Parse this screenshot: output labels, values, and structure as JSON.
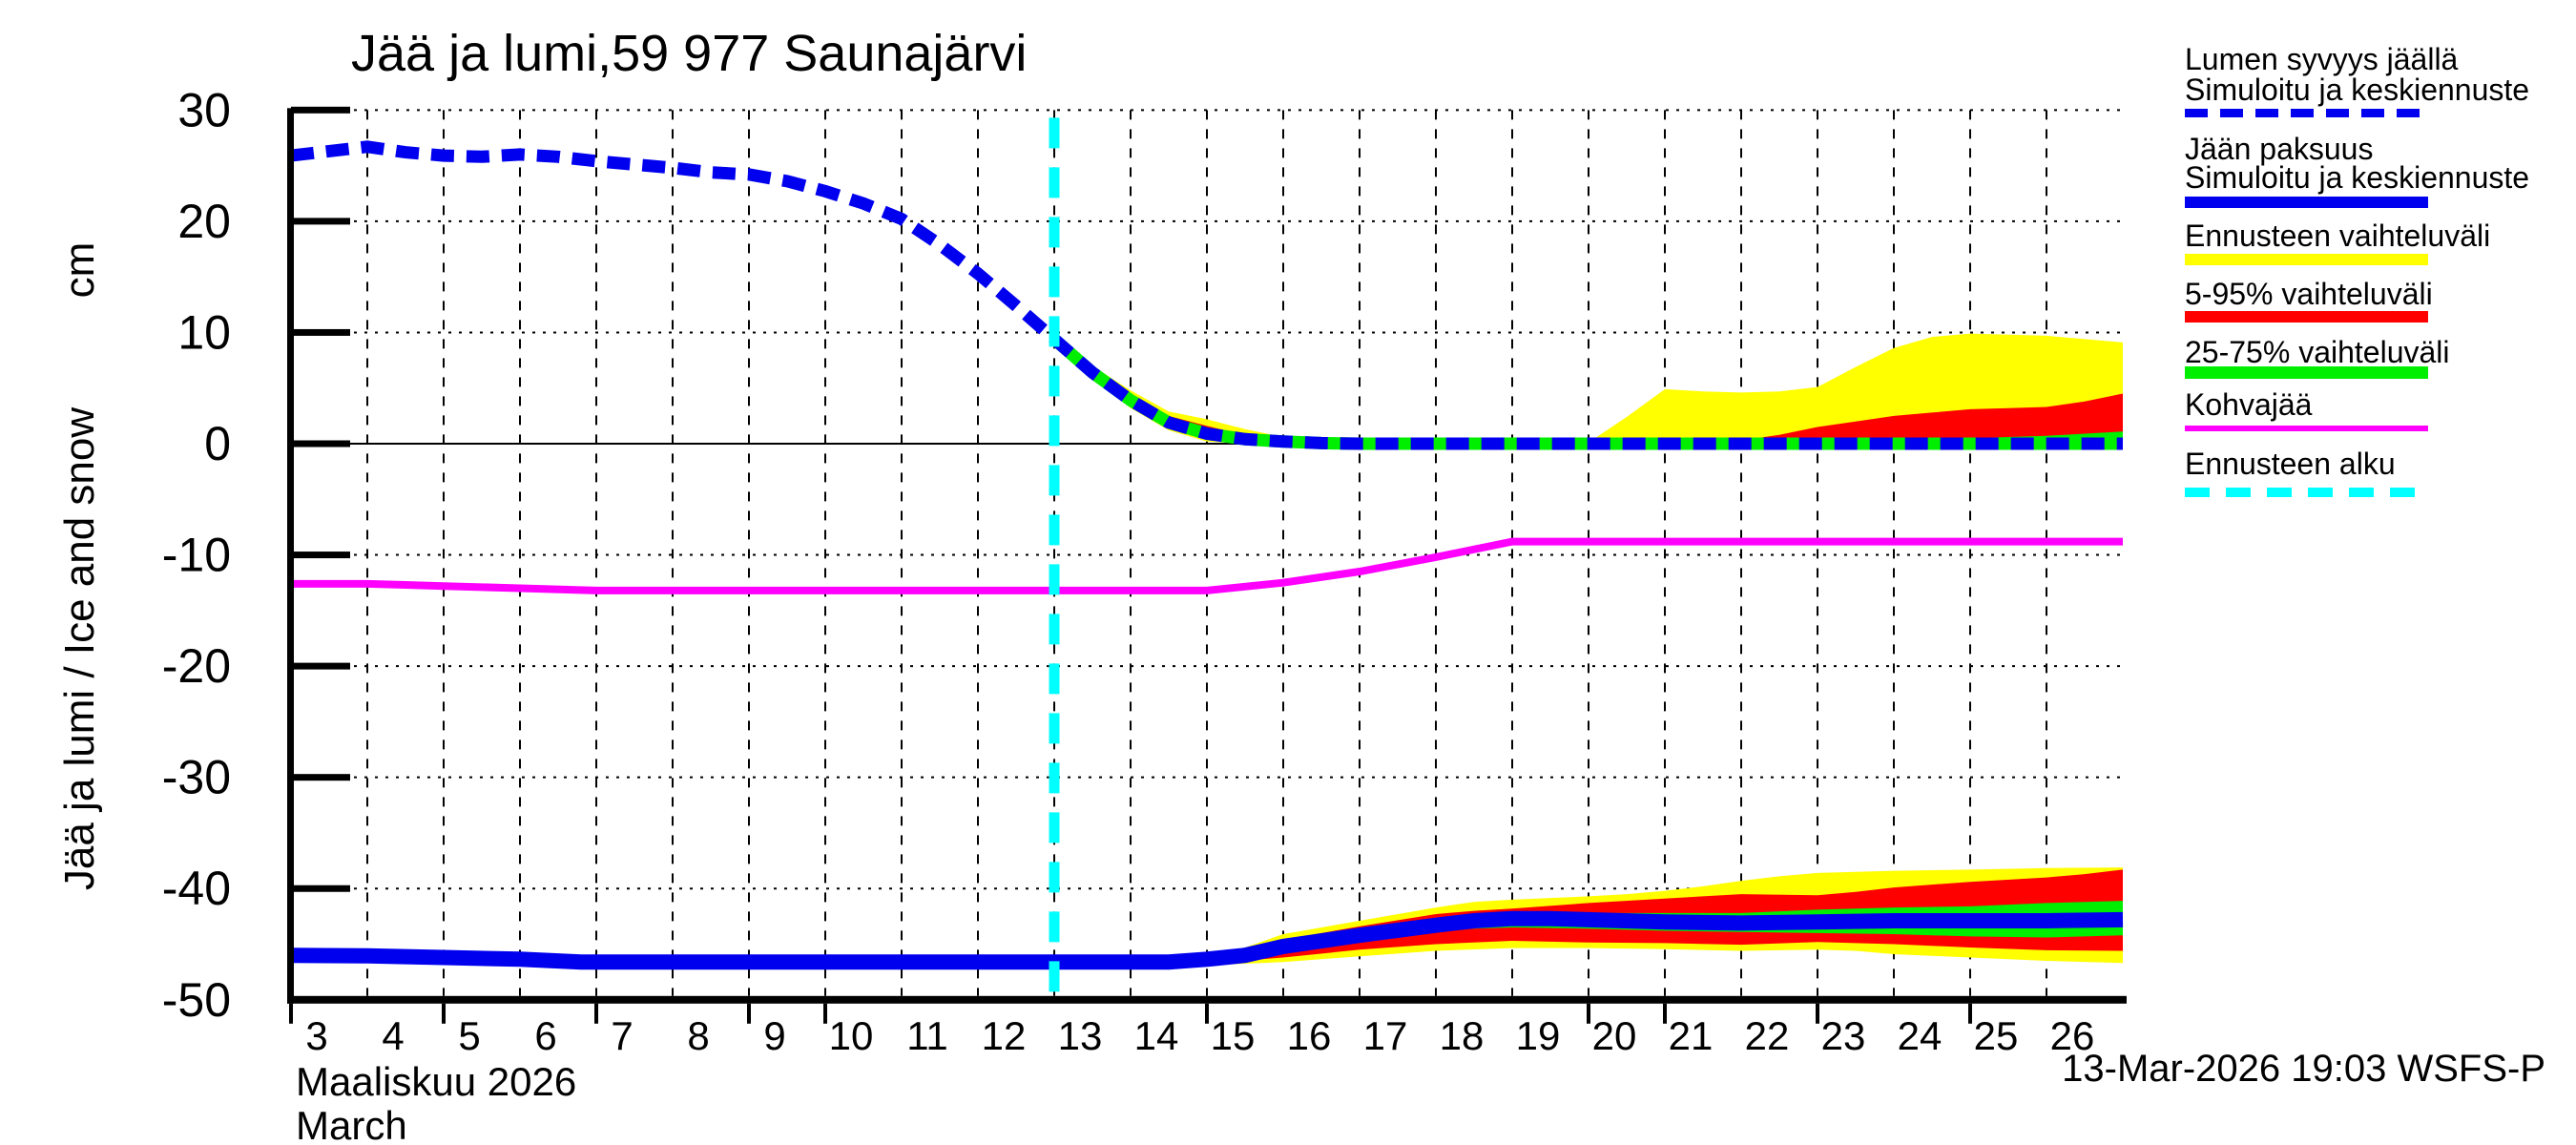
{
  "title": "Jää ja lumi,59 977 Saunajärvi",
  "footer": {
    "timestamp": "13-Mar-2026 19:03 WSFS-P"
  },
  "y_axis": {
    "label": "Jää ja lumi / Ice and snow",
    "unit": "cm",
    "ticks": [
      30,
      20,
      10,
      0,
      -10,
      -20,
      -30,
      -40,
      -50
    ]
  },
  "x_axis": {
    "month_fi": "Maaliskuu 2026",
    "month_en": "March",
    "days": [
      3,
      4,
      5,
      6,
      7,
      8,
      9,
      10,
      11,
      12,
      13,
      14,
      15,
      16,
      17,
      18,
      19,
      20,
      21,
      22,
      23,
      24,
      25,
      26
    ],
    "tick_days": [
      3,
      5,
      7,
      9,
      10,
      15,
      20,
      21,
      23,
      25
    ]
  },
  "colors": {
    "blue": "#0000ee",
    "yellow": "#ffff00",
    "red": "#ff0000",
    "green": "#00ee00",
    "magenta": "#ff00ff",
    "cyan": "#00ffff",
    "black": "#000000",
    "background": "#ffffff"
  },
  "legend": [
    {
      "lines": [
        "Lumen syvyys jäällä",
        "Simuloitu ja keskiennuste"
      ],
      "swatch": "dashed",
      "color": "#0000ee"
    },
    {
      "lines": [
        "Jään paksuus",
        "Simuloitu ja keskiennuste"
      ],
      "swatch": "solid",
      "color": "#0000ee"
    },
    {
      "lines": [
        "Ennusteen vaihteluväli"
      ],
      "swatch": "solid",
      "color": "#ffff00"
    },
    {
      "lines": [
        "5-95% vaihteluväli"
      ],
      "swatch": "solid",
      "color": "#ff0000"
    },
    {
      "lines": [
        "25-75% vaihteluväli"
      ],
      "swatch": "solid",
      "color": "#00ee00"
    },
    {
      "lines": [
        "Kohvajää"
      ],
      "swatch": "solid",
      "color": "#ff00ff"
    },
    {
      "lines": [
        "Ennusteen alku"
      ],
      "swatch": "dashed",
      "color": "#00ffff"
    }
  ],
  "chart_data": {
    "type": "line",
    "title": "Jää ja lumi,59 977 Saunajärvi",
    "xlabel": "Maaliskuu 2026 / March (day of month)",
    "ylabel": "Jää ja lumi / Ice and snow, cm",
    "xlim": [
      3,
      27
    ],
    "ylim": [
      -50,
      30
    ],
    "grid": true,
    "legend_position": "right",
    "forecast_start_day": 13,
    "series": [
      {
        "name": "Lumen syvyys jäällä - Simuloitu ja keskiennuste",
        "style": "dashed",
        "color": "#0000ee",
        "points": [
          [
            3,
            25.9
          ],
          [
            3.5,
            26.3
          ],
          [
            4,
            26.7
          ],
          [
            4.5,
            26.2
          ],
          [
            5,
            25.9
          ],
          [
            5.5,
            25.8
          ],
          [
            6,
            26.0
          ],
          [
            6.5,
            25.8
          ],
          [
            7,
            25.4
          ],
          [
            7.5,
            25.1
          ],
          [
            8,
            24.8
          ],
          [
            8.5,
            24.4
          ],
          [
            9,
            24.2
          ],
          [
            9.5,
            23.6
          ],
          [
            10,
            22.7
          ],
          [
            10.5,
            21.6
          ],
          [
            11,
            20.2
          ],
          [
            11.5,
            17.9
          ],
          [
            12,
            15.3
          ],
          [
            12.5,
            12.4
          ],
          [
            13,
            9.4
          ],
          [
            13.5,
            6.4
          ],
          [
            14,
            3.9
          ],
          [
            14.5,
            1.9
          ],
          [
            15,
            0.9
          ],
          [
            15.5,
            0.4
          ],
          [
            16,
            0.2
          ],
          [
            16.5,
            0.05
          ],
          [
            17,
            0
          ],
          [
            27,
            0
          ]
        ]
      },
      {
        "name": "Jään paksuus - Simuloitu ja keskiennuste",
        "style": "solid",
        "color": "#0000ee",
        "points": [
          [
            3,
            -46.0
          ],
          [
            4,
            -46.05
          ],
          [
            5,
            -46.2
          ],
          [
            6,
            -46.35
          ],
          [
            6.8,
            -46.6
          ],
          [
            8,
            -46.6
          ],
          [
            14.5,
            -46.6
          ],
          [
            15,
            -46.35
          ],
          [
            15.5,
            -46.0
          ],
          [
            16,
            -45.2
          ],
          [
            17,
            -44.2
          ],
          [
            18,
            -43.3
          ],
          [
            18.5,
            -42.9
          ],
          [
            19,
            -42.7
          ],
          [
            19.5,
            -42.7
          ],
          [
            20,
            -42.8
          ],
          [
            21,
            -43.0
          ],
          [
            22,
            -43.1
          ],
          [
            23,
            -43.0
          ],
          [
            24,
            -42.9
          ],
          [
            25,
            -42.9
          ],
          [
            26,
            -42.9
          ],
          [
            27,
            -42.8
          ]
        ]
      },
      {
        "name": "Kohvajää",
        "style": "solid",
        "color": "#ff00ff",
        "points": [
          [
            3,
            -12.6
          ],
          [
            4,
            -12.6
          ],
          [
            4.5,
            -12.7
          ],
          [
            5,
            -12.8
          ],
          [
            6,
            -13.0
          ],
          [
            7,
            -13.2
          ],
          [
            15,
            -13.2
          ],
          [
            16,
            -12.5
          ],
          [
            17,
            -11.5
          ],
          [
            18,
            -10.2
          ],
          [
            19,
            -8.8
          ],
          [
            27,
            -8.8
          ]
        ]
      }
    ],
    "bands": [
      {
        "name": "Lumi: Ennusteen vaihteluväli",
        "color": "#ffff00",
        "top": [
          [
            13,
            9.4
          ],
          [
            13.5,
            7.0
          ],
          [
            14,
            4.8
          ],
          [
            14.5,
            2.9
          ],
          [
            15,
            2.2
          ],
          [
            15.5,
            1.3
          ],
          [
            16,
            0.6
          ],
          [
            16.5,
            0.25
          ],
          [
            17,
            0.1
          ],
          [
            20,
            0.1
          ],
          [
            20.5,
            2.4
          ],
          [
            21,
            4.9
          ],
          [
            21.5,
            4.7
          ],
          [
            22,
            4.6
          ],
          [
            22.5,
            4.7
          ],
          [
            23,
            5.1
          ],
          [
            23.5,
            6.9
          ],
          [
            24,
            8.6
          ],
          [
            24.5,
            9.6
          ],
          [
            25,
            9.9
          ],
          [
            25.5,
            9.8
          ],
          [
            26,
            9.7
          ],
          [
            26.5,
            9.4
          ],
          [
            27,
            9.1
          ]
        ],
        "bottom": [
          [
            13,
            9.4
          ],
          [
            13.5,
            5.9
          ],
          [
            14,
            3.2
          ],
          [
            14.5,
            1.2
          ],
          [
            15,
            0.2
          ],
          [
            15.5,
            0
          ],
          [
            27,
            0
          ]
        ]
      },
      {
        "name": "Lumi: 5-95% vaihteluväli",
        "color": "#ff0000",
        "top": [
          [
            13,
            9.4
          ],
          [
            13.5,
            6.7
          ],
          [
            14,
            4.4
          ],
          [
            14.5,
            2.5
          ],
          [
            15,
            1.6
          ],
          [
            15.5,
            0.8
          ],
          [
            16,
            0.35
          ],
          [
            16.5,
            0.15
          ],
          [
            17,
            0.05
          ],
          [
            21.5,
            0.05
          ],
          [
            22,
            0.3
          ],
          [
            22.5,
            0.8
          ],
          [
            23,
            1.5
          ],
          [
            23.5,
            2.0
          ],
          [
            24,
            2.5
          ],
          [
            24.5,
            2.8
          ],
          [
            25,
            3.1
          ],
          [
            25.5,
            3.2
          ],
          [
            26,
            3.3
          ],
          [
            26.5,
            3.8
          ],
          [
            27,
            4.5
          ]
        ],
        "bottom": [
          [
            13,
            9.4
          ],
          [
            13.5,
            6.1
          ],
          [
            14,
            3.5
          ],
          [
            14.5,
            1.4
          ],
          [
            15,
            0.35
          ],
          [
            15.5,
            0
          ],
          [
            27,
            0
          ]
        ]
      },
      {
        "name": "Lumi: 25-75% vaihteluväli",
        "color": "#00ee00",
        "top": [
          [
            13,
            9.4
          ],
          [
            13.5,
            6.5
          ],
          [
            14,
            4.1
          ],
          [
            14.5,
            2.1
          ],
          [
            15,
            1.1
          ],
          [
            15.5,
            0.5
          ],
          [
            16,
            0.25
          ],
          [
            16.5,
            0.1
          ],
          [
            17,
            0.05
          ],
          [
            23.5,
            0.05
          ],
          [
            24,
            0.2
          ],
          [
            24.5,
            0.4
          ],
          [
            25,
            0.5
          ],
          [
            25.5,
            0.6
          ],
          [
            26,
            0.7
          ],
          [
            26.5,
            0.9
          ],
          [
            27,
            1.1
          ]
        ],
        "bottom": [
          [
            13,
            9.4
          ],
          [
            13.5,
            6.3
          ],
          [
            14,
            3.7
          ],
          [
            14.5,
            1.7
          ],
          [
            15,
            0.6
          ],
          [
            15.5,
            0.15
          ],
          [
            16,
            0
          ],
          [
            27,
            0
          ]
        ]
      },
      {
        "name": "Jää: Ennusteen vaihteluväli",
        "color": "#ffff00",
        "top": [
          [
            13,
            -46.6
          ],
          [
            14,
            -46.55
          ],
          [
            14.5,
            -46.4
          ],
          [
            15,
            -46.0
          ],
          [
            15.5,
            -45.3
          ],
          [
            16,
            -44.1
          ],
          [
            17,
            -42.9
          ],
          [
            18,
            -41.7
          ],
          [
            18.5,
            -41.2
          ],
          [
            19,
            -41.0
          ],
          [
            19.5,
            -40.85
          ],
          [
            20,
            -40.7
          ],
          [
            20.5,
            -40.5
          ],
          [
            21,
            -40.2
          ],
          [
            21.5,
            -39.8
          ],
          [
            22,
            -39.3
          ],
          [
            22.5,
            -38.9
          ],
          [
            23,
            -38.6
          ],
          [
            24,
            -38.4
          ],
          [
            25,
            -38.3
          ],
          [
            26,
            -38.15
          ],
          [
            27,
            -38.1
          ]
        ],
        "bottom": [
          [
            13,
            -46.6
          ],
          [
            14,
            -46.7
          ],
          [
            15,
            -46.9
          ],
          [
            16,
            -46.6
          ],
          [
            17,
            -46.1
          ],
          [
            18,
            -45.6
          ],
          [
            19,
            -45.35
          ],
          [
            20,
            -45.35
          ],
          [
            21,
            -45.45
          ],
          [
            22,
            -45.6
          ],
          [
            23,
            -45.5
          ],
          [
            23.5,
            -45.6
          ],
          [
            24,
            -45.9
          ],
          [
            25,
            -46.2
          ],
          [
            26,
            -46.5
          ],
          [
            27,
            -46.7
          ]
        ]
      },
      {
        "name": "Jää: 5-95% vaihteluväli",
        "color": "#ff0000",
        "top": [
          [
            13,
            -46.6
          ],
          [
            14,
            -46.6
          ],
          [
            14.5,
            -46.5
          ],
          [
            15,
            -46.2
          ],
          [
            15.5,
            -45.7
          ],
          [
            16,
            -44.6
          ],
          [
            17,
            -43.4
          ],
          [
            18,
            -42.3
          ],
          [
            18.5,
            -42.0
          ],
          [
            19,
            -41.8
          ],
          [
            20,
            -41.3
          ],
          [
            21,
            -40.9
          ],
          [
            22,
            -40.5
          ],
          [
            23,
            -40.6
          ],
          [
            23.5,
            -40.3
          ],
          [
            24,
            -39.9
          ],
          [
            25,
            -39.4
          ],
          [
            26,
            -39.0
          ],
          [
            26.5,
            -38.7
          ],
          [
            27,
            -38.3
          ]
        ],
        "bottom": [
          [
            13,
            -46.6
          ],
          [
            14,
            -46.65
          ],
          [
            15,
            -46.75
          ],
          [
            16,
            -46.2
          ],
          [
            17,
            -45.5
          ],
          [
            18,
            -45.0
          ],
          [
            19,
            -44.7
          ],
          [
            20,
            -44.85
          ],
          [
            21,
            -44.9
          ],
          [
            22,
            -45.05
          ],
          [
            23,
            -44.8
          ],
          [
            24,
            -45.0
          ],
          [
            25,
            -45.3
          ],
          [
            26,
            -45.55
          ],
          [
            27,
            -45.6
          ]
        ]
      },
      {
        "name": "Jää: 25-75% vaihteluväli",
        "color": "#00ee00",
        "top": [
          [
            13,
            -46.6
          ],
          [
            14,
            -46.6
          ],
          [
            15,
            -46.4
          ],
          [
            16,
            -45.0
          ],
          [
            17,
            -43.9
          ],
          [
            18,
            -42.9
          ],
          [
            18.5,
            -42.5
          ],
          [
            19,
            -42.3
          ],
          [
            20,
            -42.2
          ],
          [
            21,
            -42.2
          ],
          [
            22,
            -42.2
          ],
          [
            23,
            -41.9
          ],
          [
            24,
            -41.7
          ],
          [
            25,
            -41.6
          ],
          [
            26,
            -41.3
          ],
          [
            27,
            -41.1
          ]
        ],
        "bottom": [
          [
            13,
            -46.6
          ],
          [
            14,
            -46.65
          ],
          [
            15,
            -46.7
          ],
          [
            16,
            -45.6
          ],
          [
            17,
            -44.6
          ],
          [
            18,
            -43.7
          ],
          [
            19,
            -43.5
          ],
          [
            20,
            -43.6
          ],
          [
            21,
            -43.8
          ],
          [
            22,
            -43.9
          ],
          [
            23,
            -44.0
          ],
          [
            24,
            -44.1
          ],
          [
            25,
            -44.3
          ],
          [
            26,
            -44.4
          ],
          [
            27,
            -44.2
          ]
        ]
      }
    ]
  }
}
